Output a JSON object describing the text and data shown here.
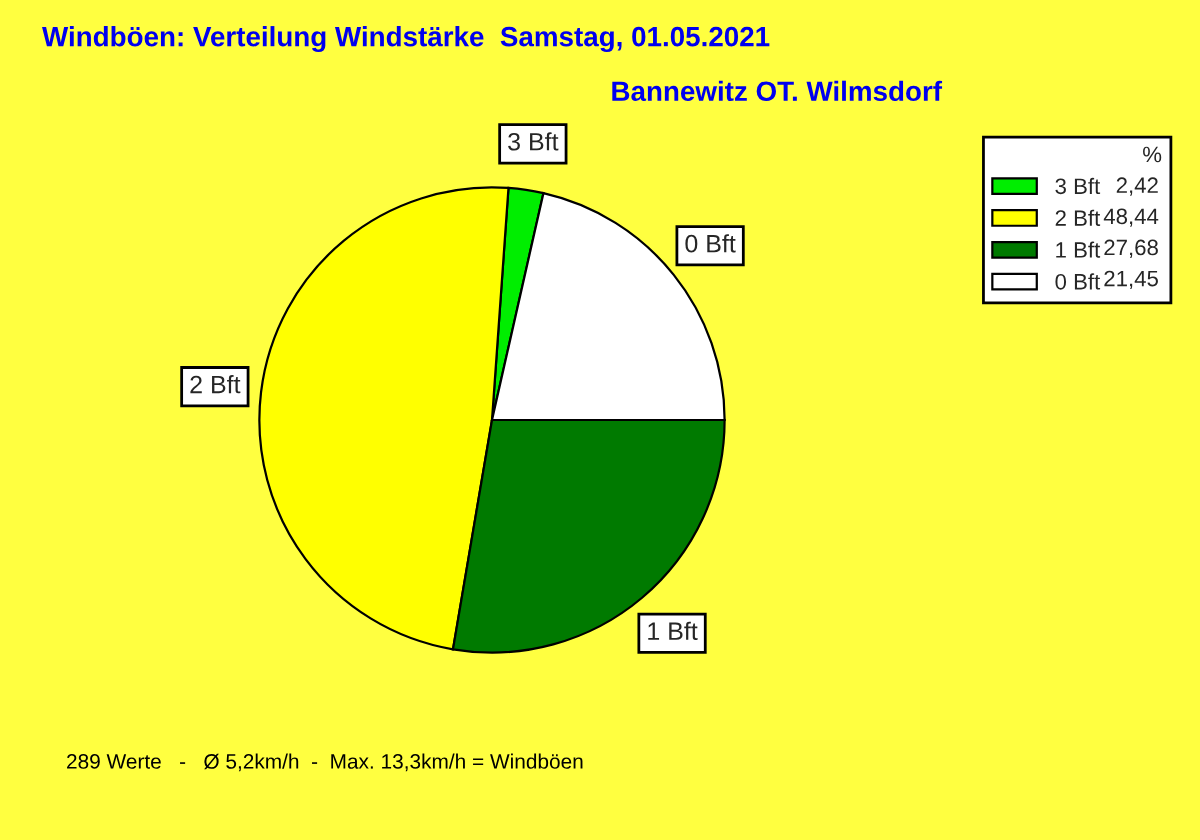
{
  "chart_data": {
    "type": "pie",
    "title": "Windböen: Verteilung Windstärke  Samstag, 01.05.2021",
    "subtitle": "Bannewitz OT. Wilmsdorf",
    "categories": [
      "3 Bft",
      "2 Bft",
      "1 Bft",
      "0 Bft"
    ],
    "values": [
      2.42,
      48.44,
      27.68,
      21.45
    ],
    "value_labels": [
      "2,42",
      "48,44",
      "27,68",
      "21,45"
    ],
    "colors": [
      "#00ee00",
      "#ffff00",
      "#007a00",
      "#ffffff"
    ],
    "legend_title": "%",
    "legend": "top right",
    "annotations": [
      "289 Werte   -   Ø 5,2km/h  -  Max. 13,3km/h = Windböen"
    ]
  }
}
